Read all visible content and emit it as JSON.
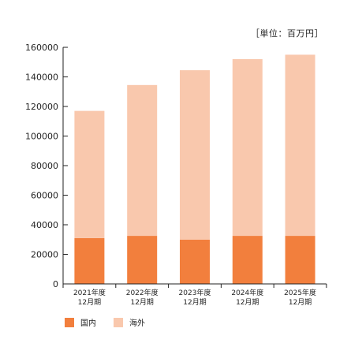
{
  "unit_label": "［単位：百万円］",
  "legend": [
    {
      "label": "国内",
      "color": "#f27f3d"
    },
    {
      "label": "海外",
      "color": "#f9c8ad"
    }
  ],
  "chart_data": {
    "type": "bar",
    "stacked": true,
    "categories": [
      [
        "2021年度",
        "12月期"
      ],
      [
        "2022年度",
        "12月期"
      ],
      [
        "2023年度",
        "12月期"
      ],
      [
        "2024年度",
        "12月期"
      ],
      [
        "2025年度",
        "12月期"
      ]
    ],
    "series": [
      {
        "name": "国内",
        "color": "#f27f3d",
        "values": [
          31000,
          32500,
          30000,
          32500,
          32500
        ]
      },
      {
        "name": "海外",
        "color": "#f9c8ad",
        "values": [
          86000,
          102000,
          114500,
          119500,
          122500
        ]
      }
    ],
    "ylim": [
      0,
      160000
    ],
    "yticks": [
      0,
      20000,
      40000,
      60000,
      80000,
      100000,
      120000,
      140000,
      160000
    ],
    "grid": false,
    "legend_position": "bottom-left"
  }
}
